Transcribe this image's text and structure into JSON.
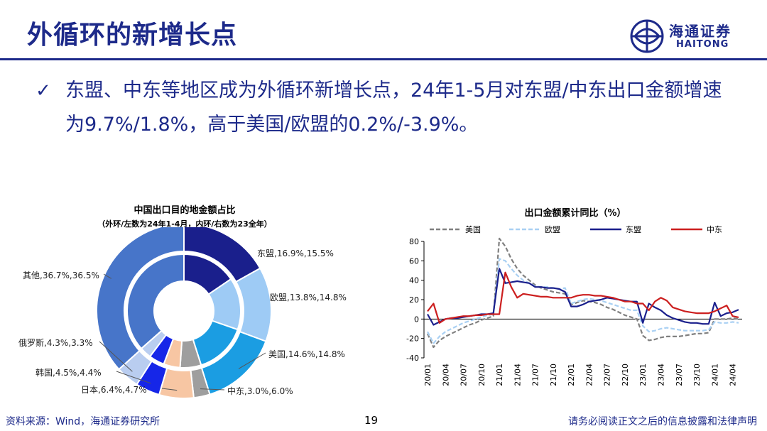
{
  "page": {
    "title": "外循环的新增长点",
    "logo_cn": "海通证券",
    "logo_en": "HAITONG",
    "bullet_check": "✓",
    "bullet": "东盟、中东等地区成为外循环新增长点，24年1-5月对东盟/中东出口金额增速为9.7%/1.8%，高于美国/欧盟的0.2%/-3.9%。",
    "footer_source": "资料来源：Wind，海通证券研究所",
    "footer_page": "19",
    "footer_disclaimer": "请务必阅读正文之后的信息披露和法律声明"
  },
  "chart_data": [
    {
      "type": "pie",
      "title": "中国出口目的地金额占比",
      "subtitle": "（外环/左数为24年1-4月，内环/右数为23全年）",
      "categories": [
        "东盟",
        "欧盟",
        "美国",
        "中东",
        "日本",
        "韩国",
        "俄罗斯",
        "其他"
      ],
      "series": [
        {
          "name": "外环",
          "values": [
            16.9,
            13.8,
            14.6,
            3.0,
            6.4,
            4.5,
            4.3,
            36.7
          ]
        },
        {
          "name": "内环",
          "values": [
            15.5,
            14.8,
            14.8,
            6.0,
            4.7,
            4.4,
            3.3,
            36.5
          ]
        }
      ],
      "labels": [
        "东盟,16.9%,15.5%",
        "欧盟,13.8%,14.8%",
        "美国,14.6%,14.8%",
        "中东,3.0%,6.0%",
        "日本,6.4%,4.7%",
        "韩国,4.5%,4.4%",
        "俄罗斯,4.3%,3.3%",
        "其他,36.7%,36.5%"
      ],
      "colors": [
        "#1a1f8c",
        "#9ecbf5",
        "#1b9de2",
        "#9e9e9e",
        "#f7c6a3",
        "#1626e8",
        "#b9cdf0",
        "#4775c9"
      ]
    },
    {
      "type": "line",
      "title": "出口金额累计同比（%）",
      "ylim": [
        -40,
        80
      ],
      "yticks": [
        "80",
        "60",
        "40",
        "20",
        "0",
        "-20",
        "-40"
      ],
      "xticks": [
        "20/01",
        "20/04",
        "20/07",
        "20/10",
        "21/01",
        "21/04",
        "21/07",
        "21/10",
        "22/01",
        "22/04",
        "22/07",
        "22/10",
        "23/01",
        "23/04",
        "23/07",
        "23/10",
        "24/01",
        "24/04"
      ],
      "x_start": "2020-01",
      "x_end": "2024-05",
      "series": [
        {
          "name": "美国",
          "color": "#808080",
          "style": "dashed",
          "values": [
            -15,
            -29,
            -22,
            -18,
            -15,
            -12,
            -9,
            -6,
            -4,
            -1,
            1,
            3,
            83,
            75,
            62,
            52,
            45,
            40,
            35,
            32,
            30,
            28,
            27,
            26,
            15,
            17,
            19,
            18,
            17,
            15,
            12,
            10,
            7,
            4,
            2,
            0,
            -17,
            -22,
            -21,
            -19,
            -18,
            -18,
            -18,
            -17,
            -16,
            -15,
            -15,
            -14,
            0,
            0,
            0,
            1,
            0.2
          ]
        },
        {
          "name": "欧盟",
          "color": "#a9d0f3",
          "style": "dashed",
          "values": [
            -13,
            -25,
            -18,
            -13,
            -10,
            -7,
            -4,
            -2,
            0,
            2,
            4,
            5,
            62,
            60,
            52,
            45,
            40,
            37,
            34,
            33,
            33,
            32,
            31,
            32,
            16,
            18,
            20,
            21,
            20,
            19,
            17,
            15,
            13,
            11,
            9,
            9,
            -7,
            -13,
            -12,
            -10,
            -9,
            -10,
            -11,
            -12,
            -12,
            -12,
            -12,
            -11,
            -3,
            -4,
            -4,
            -3,
            -3.9
          ]
        },
        {
          "name": "东盟",
          "color": "#1a1f8c",
          "style": "solid",
          "values": [
            5,
            -6,
            -3,
            0,
            1,
            1,
            2,
            3,
            4,
            5,
            5,
            6,
            52,
            37,
            38,
            39,
            38,
            37,
            33,
            33,
            32,
            32,
            31,
            28,
            13,
            13,
            15,
            18,
            19,
            20,
            22,
            21,
            20,
            19,
            18,
            18,
            -4,
            16,
            12,
            9,
            4,
            1,
            -1,
            -3,
            -4,
            -4,
            -5,
            -5,
            17,
            3,
            6,
            7,
            9.7
          ]
        },
        {
          "name": "中东",
          "color": "#cc1f1f",
          "style": "solid",
          "values": [
            8,
            16,
            -4,
            0,
            1,
            2,
            3,
            3,
            4,
            4,
            5,
            5,
            5,
            48,
            33,
            22,
            26,
            25,
            24,
            23,
            23,
            22,
            22,
            22,
            22,
            24,
            25,
            25,
            24,
            24,
            23,
            22,
            20,
            18,
            18,
            16,
            16,
            9,
            18,
            22,
            19,
            12,
            10,
            8,
            7,
            6,
            6,
            6,
            8,
            11,
            14,
            3,
            1.8
          ]
        }
      ]
    }
  ]
}
